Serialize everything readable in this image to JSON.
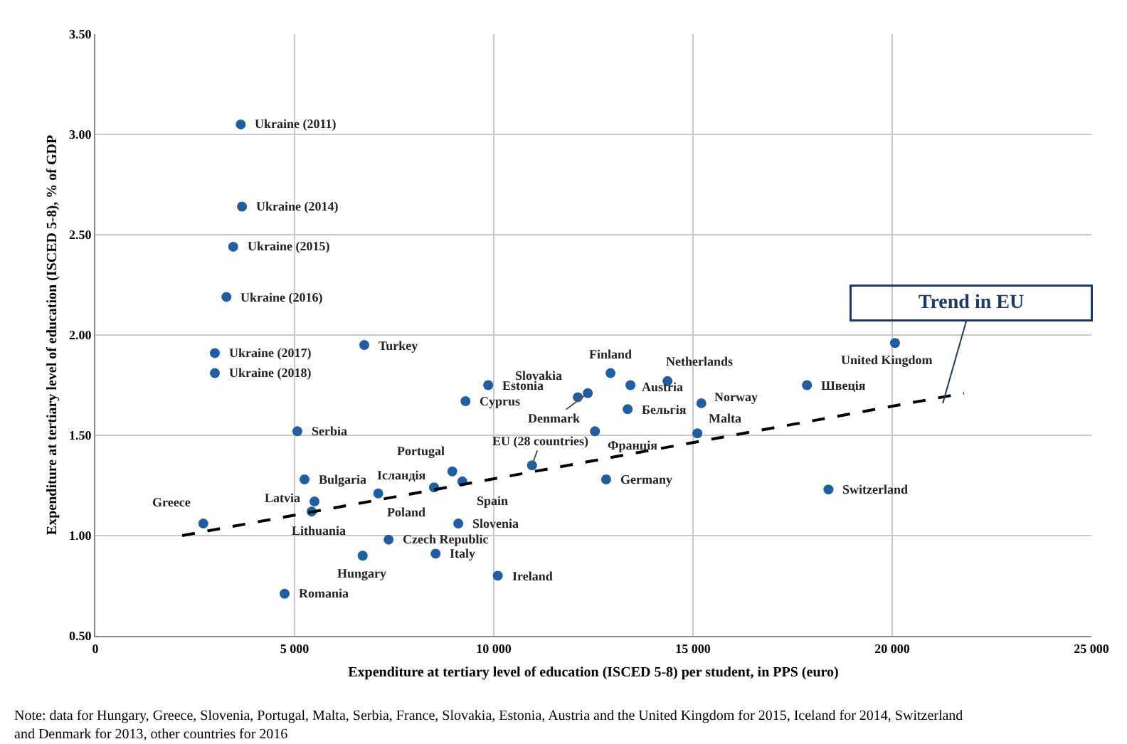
{
  "chart_data": {
    "type": "scatter",
    "xlabel": "Expenditure at tertiary level of education (ISCED 5-8) per student, in PPS (euro)",
    "ylabel": "Expenditure at tertiary level of education (ISCED 5-8), % of GDP",
    "xlim": [
      0,
      25000
    ],
    "ylim": [
      0.5,
      3.5
    ],
    "xticks": [
      0,
      {
        "value": 5000,
        "label": "5 000"
      },
      {
        "value": 10000,
        "label": "10 000"
      },
      {
        "value": 15000,
        "label": "15 000"
      },
      {
        "value": 20000,
        "label": "20 000"
      },
      {
        "value": 25000,
        "label": "25 000"
      }
    ],
    "yticks": [
      {
        "value": 0.5,
        "label": "0.50"
      },
      {
        "value": 1.0,
        "label": "1.00"
      },
      {
        "value": 1.5,
        "label": "1.50"
      },
      {
        "value": 2.0,
        "label": "2.00"
      },
      {
        "value": 2.5,
        "label": "2.50"
      },
      {
        "value": 3.0,
        "label": "3.00"
      },
      {
        "value": 3.5,
        "label": "3.50"
      }
    ],
    "grid": true,
    "legend": false,
    "marker": "circle",
    "series": [
      {
        "name": "Ukraine (2011)",
        "color": "#1f5fa0",
        "x": [
          3650
        ],
        "values": [
          3.05
        ]
      },
      {
        "name": "Ukraine (2014)",
        "color": "#1f5fa0",
        "x": [
          3680
        ],
        "values": [
          2.64
        ]
      },
      {
        "name": "Ukraine (2015)",
        "color": "#1f5fa0",
        "x": [
          3460
        ],
        "values": [
          2.44
        ]
      },
      {
        "name": "Ukraine (2016)",
        "color": "#1f5fa0",
        "x": [
          3290
        ],
        "values": [
          2.19
        ]
      },
      {
        "name": "Ukraine (2017)",
        "color": "#1f5fa0",
        "x": [
          3000
        ],
        "values": [
          1.91
        ]
      },
      {
        "name": "Ukraine (2018)",
        "color": "#1f5fa0",
        "x": [
          3000
        ],
        "values": [
          1.81
        ]
      },
      {
        "name": "Turkey",
        "color": "#1f5fa0",
        "x": [
          6750
        ],
        "values": [
          1.95
        ]
      },
      {
        "name": "Serbia",
        "color": "#1f5fa0",
        "x": [
          5070
        ],
        "values": [
          1.52
        ]
      },
      {
        "name": "Bulgaria",
        "color": "#1f5fa0",
        "x": [
          5250
        ],
        "values": [
          1.28
        ]
      },
      {
        "name": "Latvia",
        "color": "#1f5fa0",
        "x": [
          5500
        ],
        "values": [
          1.17
        ]
      },
      {
        "name": "Lithuania",
        "color": "#1f5fa0",
        "x": [
          5430
        ],
        "values": [
          1.12
        ]
      },
      {
        "name": "Greece",
        "color": "#1f5fa0",
        "x": [
          2710
        ],
        "values": [
          1.06
        ]
      },
      {
        "name": "Poland",
        "color": "#1f5fa0",
        "x": [
          7100
        ],
        "values": [
          1.21
        ]
      },
      {
        "name": "Hungary",
        "color": "#1f5fa0",
        "x": [
          6710
        ],
        "values": [
          0.9
        ]
      },
      {
        "name": "Romania",
        "color": "#1f5fa0",
        "x": [
          4750
        ],
        "values": [
          0.71
        ]
      },
      {
        "name": "Czech Republic",
        "color": "#1f5fa0",
        "x": [
          7360
        ],
        "values": [
          0.98
        ]
      },
      {
        "name": "Portugal",
        "color": "#1f5fa0",
        "x": [
          8960
        ],
        "values": [
          1.32
        ]
      },
      {
        "name": "Ісландія",
        "color": "#1f5fa0",
        "x": [
          8500
        ],
        "values": [
          1.24
        ]
      },
      {
        "name": "Spain",
        "color": "#1f5fa0",
        "x": [
          9210
        ],
        "values": [
          1.27
        ]
      },
      {
        "name": "Slovenia",
        "color": "#1f5fa0",
        "x": [
          9110
        ],
        "values": [
          1.06
        ]
      },
      {
        "name": "Italy",
        "color": "#1f5fa0",
        "x": [
          8540
        ],
        "values": [
          0.91
        ]
      },
      {
        "name": "Ireland",
        "color": "#1f5fa0",
        "x": [
          10100
        ],
        "values": [
          0.8
        ]
      },
      {
        "name": "Cyprus",
        "color": "#1f5fa0",
        "x": [
          9290
        ],
        "values": [
          1.67
        ]
      },
      {
        "name": "Estonia",
        "color": "#1f5fa0",
        "x": [
          9860
        ],
        "values": [
          1.75
        ]
      },
      {
        "name": "Slovakia",
        "color": "#1f5fa0",
        "x": [
          12110
        ],
        "values": [
          1.69
        ]
      },
      {
        "name": "Denmark",
        "color": "#1f5fa0",
        "x": [
          12360
        ],
        "values": [
          1.71
        ]
      },
      {
        "name": "Finland",
        "color": "#1f5fa0",
        "x": [
          12930
        ],
        "values": [
          1.81
        ]
      },
      {
        "name": "Austria",
        "color": "#1f5fa0",
        "x": [
          13430
        ],
        "values": [
          1.75
        ]
      },
      {
        "name": "Бельгія",
        "color": "#1f5fa0",
        "x": [
          13360
        ],
        "values": [
          1.63
        ]
      },
      {
        "name": "Netherlands",
        "color": "#1f5fa0",
        "x": [
          14360
        ],
        "values": [
          1.77
        ]
      },
      {
        "name": "Франція",
        "color": "#1f5fa0",
        "x": [
          12540
        ],
        "values": [
          1.52
        ]
      },
      {
        "name": "EU (28 countries)",
        "color": "#1f5fa0",
        "x": [
          10960
        ],
        "values": [
          1.35
        ]
      },
      {
        "name": "Germany",
        "color": "#1f5fa0",
        "x": [
          12820
        ],
        "values": [
          1.28
        ]
      },
      {
        "name": "Norway",
        "color": "#1f5fa0",
        "x": [
          15210
        ],
        "values": [
          1.66
        ]
      },
      {
        "name": "Malta",
        "color": "#1f5fa0",
        "x": [
          15110
        ],
        "values": [
          1.51
        ]
      },
      {
        "name": "Швеція",
        "color": "#1f5fa0",
        "x": [
          17860
        ],
        "values": [
          1.75
        ]
      },
      {
        "name": "United Kingdom",
        "color": "#1f5fa0",
        "x": [
          20070
        ],
        "values": [
          1.96
        ]
      },
      {
        "name": "Switzerland",
        "color": "#1f5fa0",
        "x": [
          18400
        ],
        "values": [
          1.23
        ]
      },
      {
        "type": "line",
        "color": "#000000",
        "line_style": "dashed",
        "marker": "none",
        "x": [
          2180,
          21800
        ],
        "values": [
          1.0,
          1.71
        ]
      }
    ],
    "annotations": [
      {
        "text": "Trend in EU",
        "x": 21270,
        "y": 1.66
      },
      "Note: data for Hungary, Greece, Slovenia, Portugal, Malta, Serbia, France, Slovakia, Estonia, Austria and the United Kingdom for 2015, Iceland for 2014, Switzerland and Denmark for 2013, other countries for 2016"
    ]
  }
}
